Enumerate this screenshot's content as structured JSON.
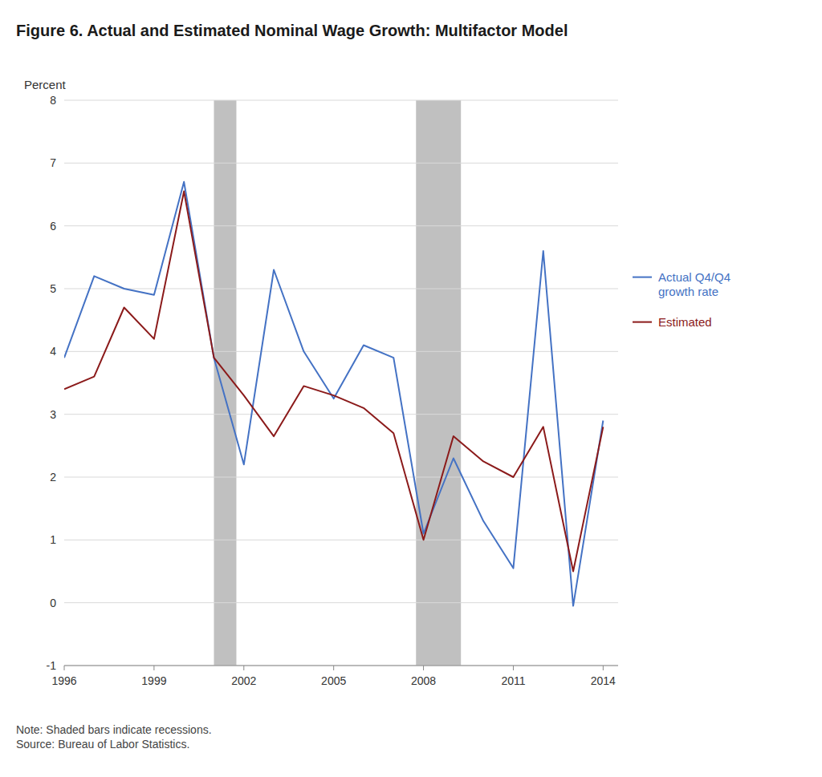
{
  "chart_data": {
    "type": "line",
    "title": "Figure 6. Actual and Estimated Nominal Wage Growth: Multifactor Model",
    "y_label": "Percent",
    "note": "Note: Shaded bars indicate recessions.\nSource: Bureau of Labor Statistics.",
    "x": [
      1996,
      1997,
      1998,
      1999,
      2000,
      2001,
      2002,
      2003,
      2004,
      2005,
      2006,
      2007,
      2008,
      2009,
      2010,
      2011,
      2012,
      2013,
      2014
    ],
    "series": [
      {
        "name": "Actual Q4/Q4\ngrowth rate",
        "color": "#4472C4",
        "values": [
          3.9,
          5.2,
          5.0,
          4.9,
          6.7,
          3.9,
          2.2,
          5.3,
          4.0,
          3.25,
          4.1,
          3.9,
          1.1,
          2.3,
          1.3,
          0.55,
          5.6,
          -0.05,
          2.9
        ]
      },
      {
        "name": "Estimated",
        "color": "#8B1A1A",
        "values": [
          3.4,
          3.6,
          4.7,
          4.2,
          6.55,
          3.9,
          3.3,
          2.65,
          3.45,
          3.3,
          3.1,
          2.7,
          1.0,
          2.65,
          2.25,
          2.0,
          2.8,
          0.5,
          2.8
        ]
      }
    ],
    "recession_bands": {
      "ranges": [
        [
          2001.0,
          2001.75
        ],
        [
          2007.75,
          2009.25
        ]
      ],
      "color": "#C0C0C0"
    },
    "xlim": [
      1996,
      2014.5
    ],
    "ylim": [
      -1,
      8
    ],
    "xticks": [
      1996,
      1999,
      2002,
      2005,
      2008,
      2011,
      2014
    ],
    "yticks": [
      -1,
      0,
      1,
      2,
      3,
      4,
      5,
      6,
      7,
      8
    ],
    "grid": true,
    "legend": "right"
  }
}
